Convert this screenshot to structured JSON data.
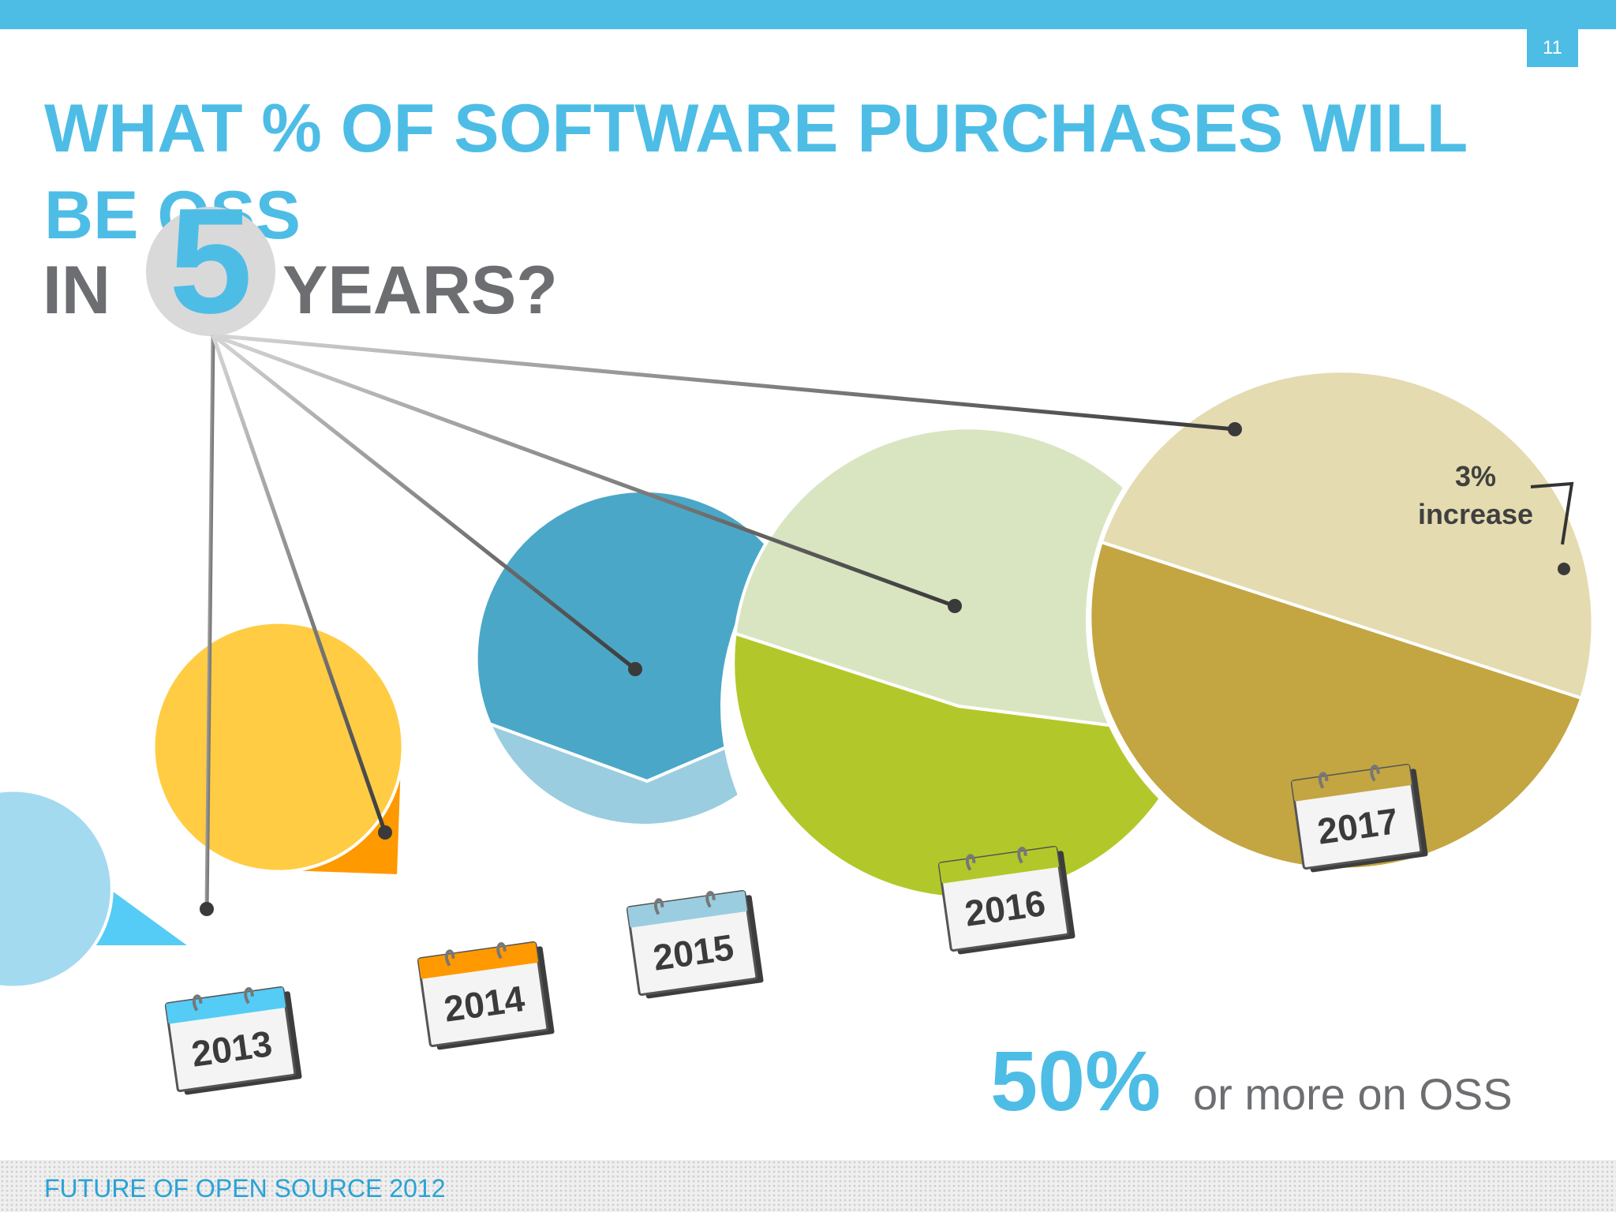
{
  "slide": {
    "page_number": "11",
    "title_line1": "WHAT % OF SOFTWARE PURCHASES WILL BE OSS",
    "title_in": "IN",
    "title_five": "5",
    "title_years": "YEARS?",
    "highlight_value": "50%",
    "highlight_text": "or more on OSS",
    "footer": "FUTURE OF OPEN SOURCE 2012",
    "callout_line1": "3%",
    "callout_line2": "increase"
  },
  "colors": {
    "accent": "#4dbde6",
    "gray_text": "#6d6e71"
  },
  "chart_data": {
    "type": "pie",
    "unit": "%",
    "series": [
      {
        "year": "2013",
        "oss_percent": 10,
        "oss_color": "#54ccf5",
        "rest_color": "#a3daf0"
      },
      {
        "year": "2014",
        "oss_percent": 25,
        "oss_color": "#ff9900",
        "rest_color": "#ffcc44"
      },
      {
        "year": "2015",
        "oss_percent": 38,
        "oss_color": "#9bcde0",
        "rest_color": "#4ba7c8"
      },
      {
        "year": "2016",
        "oss_percent": 47,
        "oss_color": "#b2c82a",
        "rest_color": "#d9e5c1"
      },
      {
        "year": "2017",
        "oss_percent": 50,
        "oss_color": "#c3a542",
        "rest_color": "#e4dbb0"
      }
    ],
    "annotation": "3% increase"
  }
}
